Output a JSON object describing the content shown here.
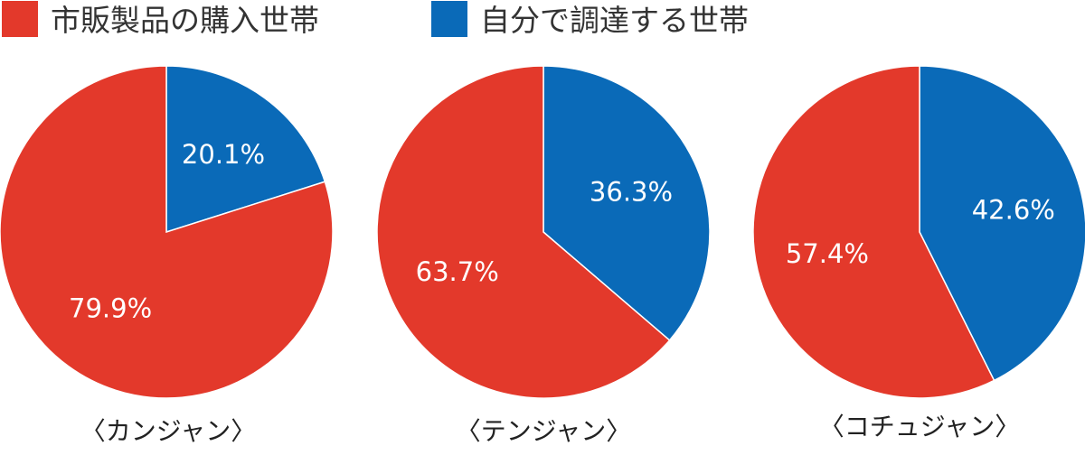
{
  "chart_data": [
    {
      "type": "pie",
      "title": "〈カンジャン〉",
      "slices": [
        {
          "label": "市販製品の購入世帯",
          "value": 79.9,
          "display": "79.9%"
        },
        {
          "label": "自分で調達する世帯",
          "value": 20.1,
          "display": "20.1%"
        }
      ]
    },
    {
      "type": "pie",
      "title": "〈テンジャン〉",
      "slices": [
        {
          "label": "市販製品の購入世帯",
          "value": 63.7,
          "display": "63.7%"
        },
        {
          "label": "自分で調達する世帯",
          "value": 36.3,
          "display": "36.3%"
        }
      ]
    },
    {
      "type": "pie",
      "title": "〈コチュジャン〉",
      "slices": [
        {
          "label": "市販製品の購入世帯",
          "value": 57.4,
          "display": "57.4%"
        },
        {
          "label": "自分で調達する世帯",
          "value": 42.6,
          "display": "42.6%"
        }
      ]
    }
  ],
  "legend": [
    {
      "label": "市販製品の購入世帯",
      "color": "#e3392b"
    },
    {
      "label": "自分で調達する世帯",
      "color": "#0a6ab8"
    }
  ],
  "colors": {
    "purchased": "#e3392b",
    "self_made": "#0a6ab8"
  }
}
